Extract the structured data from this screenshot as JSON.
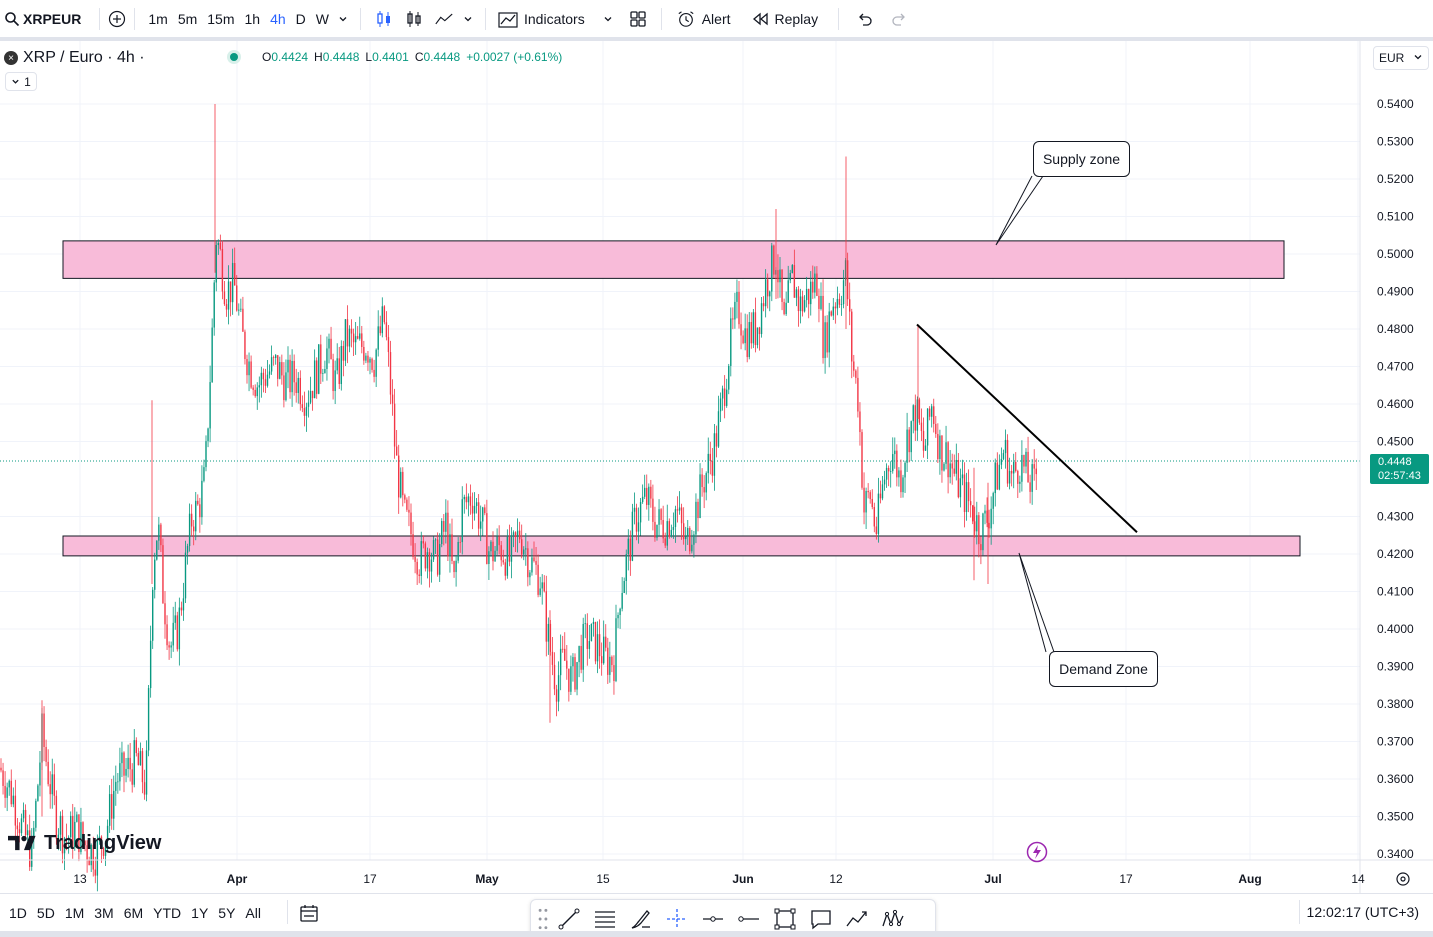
{
  "toolbar": {
    "symbol": "XRPEUR",
    "intervals": [
      "1m",
      "5m",
      "15m",
      "1h",
      "4h",
      "D",
      "W"
    ],
    "active_interval": "4h",
    "indicators_label": "Indicators",
    "alert_label": "Alert",
    "replay_label": "Replay"
  },
  "legend": {
    "title": "XRP / Euro · 4h ·",
    "open_label": "O",
    "open": "0.4424",
    "high_label": "H",
    "high": "0.4448",
    "low_label": "L",
    "low": "0.4401",
    "close_label": "C",
    "close": "0.4448",
    "change": "+0.0027 (+0.61%)",
    "collapse_count": "1"
  },
  "currency": "EUR",
  "price_badge": {
    "price": "0.4448",
    "countdown": "02:57:43",
    "color": "#089981"
  },
  "annotations": {
    "supply": "Supply zone",
    "demand": "Demand Zone"
  },
  "watermark": "TradingView",
  "ranges": [
    "1D",
    "5D",
    "1M",
    "3M",
    "6M",
    "YTD",
    "1Y",
    "5Y",
    "All"
  ],
  "clock": "12:02:17 (UTC+3)",
  "colors": {
    "up": "#089981",
    "down": "#f23645",
    "zone_fill": "#f8bbd9",
    "accent": "#2962ff"
  },
  "draw_tools": [
    "crosshair-icon",
    "trend-line-icon",
    "fib-icon",
    "brush-icon",
    "measure-icon",
    "horizontal-ray-icon",
    "horizontal-line-icon",
    "rectangle-icon",
    "callout-icon",
    "path-icon",
    "pattern-icon"
  ],
  "chart_data": {
    "type": "candlestick",
    "price_axis": [
      "0.5400",
      "0.5300",
      "0.5200",
      "0.5100",
      "0.5000",
      "0.4900",
      "0.4800",
      "0.4700",
      "0.4600",
      "0.4500",
      "0.4300",
      "0.4200",
      "0.4100",
      "0.4000",
      "0.3900",
      "0.3800",
      "0.3700",
      "0.3600",
      "0.3500",
      "0.3400"
    ],
    "time_axis": [
      "13",
      "Apr",
      "17",
      "May",
      "15",
      "Jun",
      "12",
      "Jul",
      "17",
      "Aug",
      "14"
    ],
    "ylim": [
      0.3375,
      0.5455
    ],
    "last_price": 0.4448,
    "zones": [
      {
        "name": "supply",
        "from": 0.4935,
        "to": 0.5035
      },
      {
        "name": "demand",
        "from": 0.4195,
        "to": 0.4248
      }
    ],
    "trendline": {
      "from": [
        "Jun 22",
        0.4812
      ],
      "to": [
        "Jul 17",
        0.4258
      ]
    },
    "close_path": [
      [
        0,
        0.363
      ],
      [
        12,
        0.356
      ],
      [
        22,
        0.347
      ],
      [
        32,
        0.34
      ],
      [
        42,
        0.372
      ],
      [
        48,
        0.362
      ],
      [
        56,
        0.35
      ],
      [
        66,
        0.344
      ],
      [
        76,
        0.347
      ],
      [
        86,
        0.342
      ],
      [
        96,
        0.34
      ],
      [
        106,
        0.346
      ],
      [
        116,
        0.36
      ],
      [
        126,
        0.362
      ],
      [
        136,
        0.365
      ],
      [
        146,
        0.358
      ],
      [
        153,
        0.418
      ],
      [
        158,
        0.428
      ],
      [
        163,
        0.41
      ],
      [
        170,
        0.395
      ],
      [
        178,
        0.4
      ],
      [
        186,
        0.418
      ],
      [
        192,
        0.43
      ],
      [
        198,
        0.432
      ],
      [
        205,
        0.44
      ],
      [
        212,
        0.478
      ],
      [
        216,
        0.505
      ],
      [
        220,
        0.5
      ],
      [
        226,
        0.49
      ],
      [
        234,
        0.492
      ],
      [
        242,
        0.478
      ],
      [
        250,
        0.47
      ],
      [
        258,
        0.465
      ],
      [
        266,
        0.468
      ],
      [
        276,
        0.47
      ],
      [
        286,
        0.466
      ],
      [
        296,
        0.467
      ],
      [
        306,
        0.462
      ],
      [
        316,
        0.468
      ],
      [
        326,
        0.475
      ],
      [
        336,
        0.465
      ],
      [
        346,
        0.478
      ],
      [
        356,
        0.475
      ],
      [
        366,
        0.476
      ],
      [
        374,
        0.472
      ],
      [
        384,
        0.483
      ],
      [
        390,
        0.466
      ],
      [
        396,
        0.445
      ],
      [
        404,
        0.43
      ],
      [
        412,
        0.425
      ],
      [
        420,
        0.418
      ],
      [
        428,
        0.422
      ],
      [
        436,
        0.418
      ],
      [
        446,
        0.428
      ],
      [
        454,
        0.412
      ],
      [
        462,
        0.432
      ],
      [
        472,
        0.436
      ],
      [
        482,
        0.428
      ],
      [
        490,
        0.42
      ],
      [
        500,
        0.422
      ],
      [
        510,
        0.418
      ],
      [
        520,
        0.426
      ],
      [
        530,
        0.418
      ],
      [
        540,
        0.414
      ],
      [
        548,
        0.398
      ],
      [
        556,
        0.386
      ],
      [
        564,
        0.392
      ],
      [
        572,
        0.386
      ],
      [
        580,
        0.394
      ],
      [
        588,
        0.398
      ],
      [
        596,
        0.396
      ],
      [
        606,
        0.392
      ],
      [
        614,
        0.392
      ],
      [
        620,
        0.41
      ],
      [
        628,
        0.42
      ],
      [
        636,
        0.43
      ],
      [
        646,
        0.435
      ],
      [
        656,
        0.428
      ],
      [
        666,
        0.428
      ],
      [
        676,
        0.432
      ],
      [
        686,
        0.422
      ],
      [
        694,
        0.43
      ],
      [
        704,
        0.44
      ],
      [
        714,
        0.448
      ],
      [
        722,
        0.46
      ],
      [
        730,
        0.476
      ],
      [
        738,
        0.486
      ],
      [
        746,
        0.478
      ],
      [
        756,
        0.48
      ],
      [
        766,
        0.492
      ],
      [
        776,
        0.5
      ],
      [
        784,
        0.48
      ],
      [
        792,
        0.494
      ],
      [
        800,
        0.486
      ],
      [
        810,
        0.49
      ],
      [
        818,
        0.494
      ],
      [
        824,
        0.475
      ],
      [
        832,
        0.487
      ],
      [
        840,
        0.49
      ],
      [
        846,
        0.495
      ],
      [
        852,
        0.472
      ],
      [
        858,
        0.462
      ],
      [
        864,
        0.432
      ],
      [
        870,
        0.436
      ],
      [
        876,
        0.426
      ],
      [
        884,
        0.44
      ],
      [
        892,
        0.448
      ],
      [
        900,
        0.44
      ],
      [
        908,
        0.452
      ],
      [
        916,
        0.458
      ],
      [
        924,
        0.447
      ],
      [
        932,
        0.46
      ],
      [
        940,
        0.448
      ],
      [
        948,
        0.446
      ],
      [
        956,
        0.44
      ],
      [
        964,
        0.436
      ],
      [
        972,
        0.432
      ],
      [
        980,
        0.426
      ],
      [
        988,
        0.43
      ],
      [
        996,
        0.44
      ],
      [
        1004,
        0.448
      ],
      [
        1012,
        0.44
      ],
      [
        1020,
        0.445
      ],
      [
        1028,
        0.44
      ],
      [
        1034,
        0.438
      ],
      [
        1038,
        0.4448
      ]
    ]
  }
}
